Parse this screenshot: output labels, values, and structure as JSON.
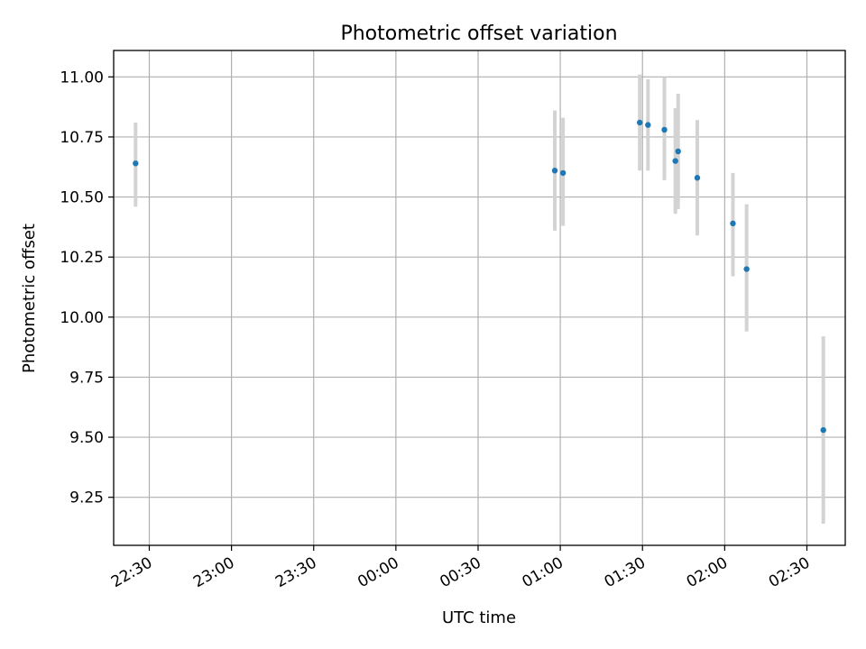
{
  "chart_data": {
    "type": "scatter",
    "title": "Photometric offset variation",
    "xlabel": "UTC time",
    "ylabel": "Photometric offset",
    "x_unit": "UTC time (hh:mm), night spanning midnight",
    "xlim": [
      "22:17",
      "02:44"
    ],
    "ylim": [
      9.05,
      11.11
    ],
    "x_ticks": [
      "22:30",
      "23:00",
      "23:30",
      "00:00",
      "00:30",
      "01:00",
      "01:30",
      "02:00",
      "02:30"
    ],
    "y_ticks": [
      "9.25",
      "9.50",
      "9.75",
      "10.00",
      "10.25",
      "10.50",
      "10.75",
      "11.00"
    ],
    "grid": true,
    "colors": {
      "points": "#1f77b4",
      "error_bars": "#d3d3d3",
      "grid": "#b0b0b0"
    },
    "points": [
      {
        "x": "22:25",
        "y": 10.64,
        "err_low": 10.46,
        "err_high": 10.81
      },
      {
        "x": "00:58",
        "y": 10.61,
        "err_low": 10.36,
        "err_high": 10.86
      },
      {
        "x": "01:01",
        "y": 10.6,
        "err_low": 10.38,
        "err_high": 10.83
      },
      {
        "x": "01:29",
        "y": 10.81,
        "err_low": 10.61,
        "err_high": 11.01
      },
      {
        "x": "01:32",
        "y": 10.8,
        "err_low": 10.61,
        "err_high": 10.99
      },
      {
        "x": "01:38",
        "y": 10.78,
        "err_low": 10.57,
        "err_high": 11.0
      },
      {
        "x": "01:42",
        "y": 10.65,
        "err_low": 10.43,
        "err_high": 10.87
      },
      {
        "x": "01:43",
        "y": 10.69,
        "err_low": 10.45,
        "err_high": 10.93
      },
      {
        "x": "01:50",
        "y": 10.58,
        "err_low": 10.34,
        "err_high": 10.82
      },
      {
        "x": "02:03",
        "y": 10.39,
        "err_low": 10.17,
        "err_high": 10.6
      },
      {
        "x": "02:08",
        "y": 10.2,
        "err_low": 9.94,
        "err_high": 10.47
      },
      {
        "x": "02:36",
        "y": 9.53,
        "err_low": 9.14,
        "err_high": 9.92
      }
    ]
  }
}
